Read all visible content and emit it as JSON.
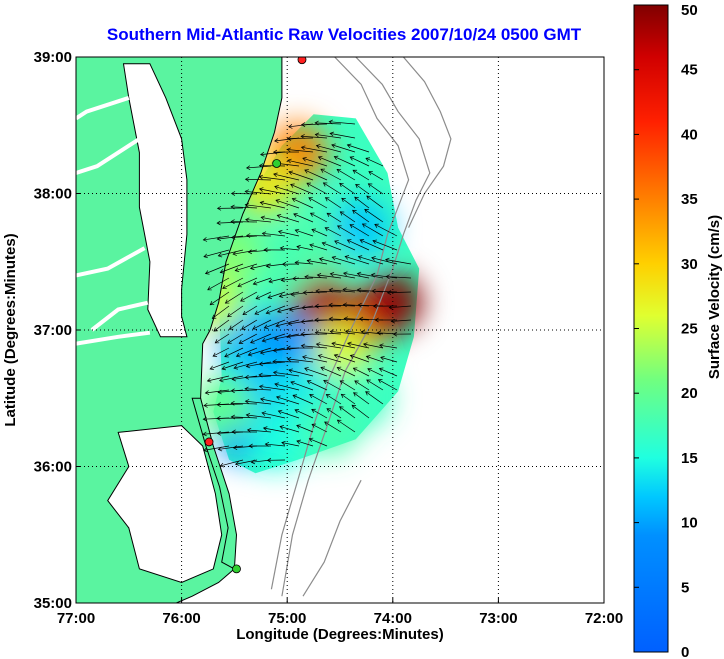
{
  "title": "Southern Mid-Atlantic Raw Velocities 2007/10/24 0500 GMT",
  "colors": {
    "title": "#0000ff",
    "land": "#5af4a0",
    "coast": "#000000",
    "bathymetry": "#8c8c8c",
    "station": "#ff2020",
    "station_alt": "#30d030",
    "arrow": "#000000"
  },
  "chart_data": {
    "type": "heatmap",
    "xlabel": "Longitude (Degrees:Minutes)",
    "ylabel": "Latitude (Degrees:Minutes)",
    "xlim": [
      -77,
      -72
    ],
    "ylim": [
      35,
      39
    ],
    "x_ticks": [
      "77:00",
      "76:00",
      "75:00",
      "74:00",
      "73:00",
      "72:00"
    ],
    "y_ticks": [
      "35:00",
      "36:00",
      "37:00",
      "38:00",
      "39:00"
    ],
    "grid": true,
    "colorbar": {
      "label": "Surface Velocity (cm/s)",
      "range": [
        0,
        50
      ],
      "ticks": [
        "0",
        "5",
        "10",
        "15",
        "20",
        "25",
        "30",
        "35",
        "40",
        "45",
        "50"
      ]
    },
    "stations": [
      {
        "lon": -74.86,
        "lat": 38.98,
        "color": "station"
      },
      {
        "lon": -75.1,
        "lat": 38.22,
        "color": "station_alt"
      },
      {
        "lon": -75.74,
        "lat": 36.18,
        "color": "station"
      },
      {
        "lon": -75.48,
        "lat": 35.25,
        "color": "station_alt"
      }
    ],
    "field": [
      {
        "lon": -74.7,
        "lat": 37.2,
        "speed": 48
      },
      {
        "lon": -74.0,
        "lat": 37.2,
        "speed": 50
      },
      {
        "lon": -74.3,
        "lat": 37.05,
        "speed": 46
      },
      {
        "lon": -74.5,
        "lat": 36.85,
        "speed": 26
      },
      {
        "lon": -74.9,
        "lat": 38.3,
        "speed": 35
      },
      {
        "lon": -75.2,
        "lat": 38.05,
        "speed": 28
      },
      {
        "lon": -74.6,
        "lat": 37.65,
        "speed": 19
      },
      {
        "lon": -74.3,
        "lat": 37.75,
        "speed": 12
      },
      {
        "lon": -75.5,
        "lat": 37.55,
        "speed": 22
      },
      {
        "lon": -75.0,
        "lat": 37.5,
        "speed": 18
      },
      {
        "lon": -75.4,
        "lat": 36.95,
        "speed": 11
      },
      {
        "lon": -75.0,
        "lat": 36.9,
        "speed": 9
      },
      {
        "lon": -75.3,
        "lat": 36.6,
        "speed": 12
      },
      {
        "lon": -74.8,
        "lat": 36.55,
        "speed": 14
      },
      {
        "lon": -74.3,
        "lat": 36.5,
        "speed": 17
      },
      {
        "lon": -75.4,
        "lat": 36.25,
        "speed": 8
      },
      {
        "lon": -75.1,
        "lat": 36.2,
        "speed": 15
      },
      {
        "lon": -75.6,
        "lat": 36.45,
        "speed": 20
      },
      {
        "lon": -74.6,
        "lat": 36.3,
        "speed": 18
      },
      {
        "lon": -75.7,
        "lat": 37.2,
        "speed": 25
      }
    ]
  }
}
